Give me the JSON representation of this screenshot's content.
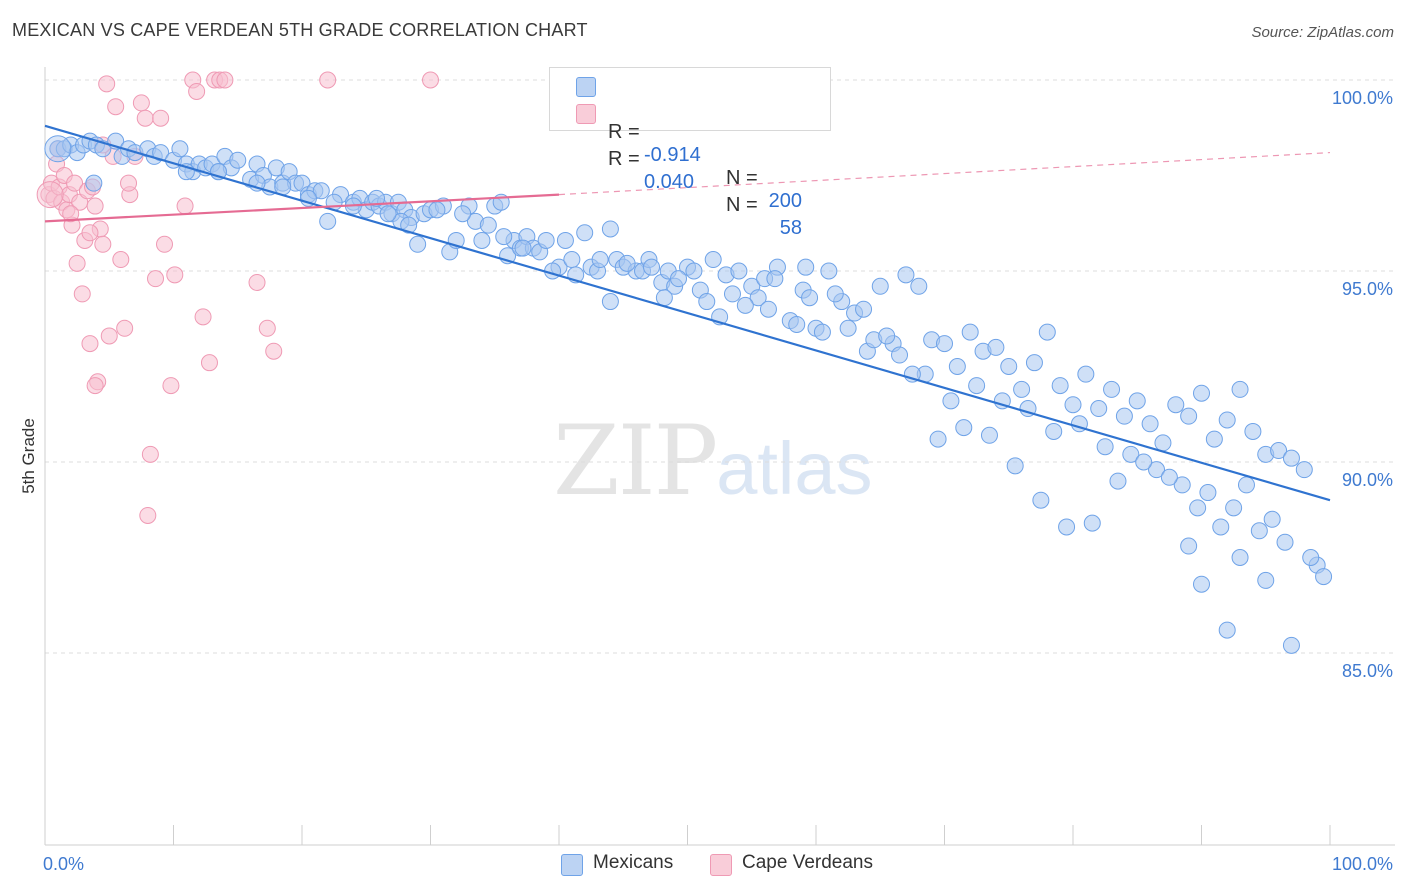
{
  "header": {
    "title": "MEXICAN VS CAPE VERDEAN 5TH GRADE CORRELATION CHART",
    "source": "Source: ZipAtlas.com"
  },
  "watermark": {
    "zip": "ZIP",
    "atlas": "atlas"
  },
  "legend": {
    "rows": [
      {
        "r_label": "R =",
        "r_value": "-0.914",
        "n_label": "N =",
        "n_value": "200",
        "color": "#6fa3e8"
      },
      {
        "r_label": "R =",
        "r_value": "0.040",
        "n_label": "N =",
        "n_value": "58",
        "color": "#f0a0b8"
      }
    ]
  },
  "bottom_legend": {
    "items": [
      {
        "label": "Mexicans",
        "color": "#6fa3e8"
      },
      {
        "label": "Cape Verdeans",
        "color": "#f0a0b8"
      }
    ]
  },
  "colors": {
    "mexicans_fill": "#a8c6f0",
    "mexicans_stroke": "#6fa3e8",
    "mexicans_line": "#2f73d0",
    "capeverdeans_fill": "#f7c0d0",
    "capeverdeans_stroke": "#ef9ab4",
    "capeverdeans_line": "#e56b93",
    "tick_text": "#3f7ad0",
    "grid": "#dcdcdc"
  },
  "chart_data": {
    "type": "scatter",
    "title": "MEXICAN VS CAPE VERDEAN 5TH GRADE CORRELATION CHART",
    "xlabel": "",
    "ylabel": "5th Grade",
    "xlim": [
      0,
      100
    ],
    "ylim": [
      80.0,
      100.5
    ],
    "x_tick_labels": [
      "0.0%",
      "100.0%"
    ],
    "y_ticks": [
      85.0,
      90.0,
      95.0,
      100.0
    ],
    "y_tick_labels": [
      "85.0%",
      "90.0%",
      "95.0%",
      "100.0%"
    ],
    "grid": true,
    "legend_position": "top-center",
    "series": [
      {
        "name": "Mexicans",
        "R": -0.914,
        "N": 200,
        "trend": {
          "x": [
            0,
            100
          ],
          "y": [
            98.8,
            89.0
          ]
        },
        "points": [
          [
            1.0,
            98.2
          ],
          [
            1.5,
            98.2
          ],
          [
            2.0,
            98.3
          ],
          [
            2.5,
            98.1
          ],
          [
            3.0,
            98.3
          ],
          [
            3.5,
            98.4
          ],
          [
            4.0,
            98.3
          ],
          [
            4.5,
            98.2
          ],
          [
            5.5,
            98.4
          ],
          [
            6.0,
            98.0
          ],
          [
            6.5,
            98.2
          ],
          [
            7.0,
            98.1
          ],
          [
            3.8,
            97.3
          ],
          [
            8.0,
            98.2
          ],
          [
            8.5,
            98.0
          ],
          [
            9.0,
            98.1
          ],
          [
            10.0,
            97.9
          ],
          [
            10.5,
            98.2
          ],
          [
            11.0,
            97.8
          ],
          [
            11.5,
            97.6
          ],
          [
            12.0,
            97.8
          ],
          [
            12.5,
            97.7
          ],
          [
            13.0,
            97.8
          ],
          [
            13.5,
            97.6
          ],
          [
            14.0,
            98.0
          ],
          [
            14.5,
            97.7
          ],
          [
            15.0,
            97.9
          ],
          [
            16.0,
            97.4
          ],
          [
            16.5,
            97.8
          ],
          [
            17.0,
            97.5
          ],
          [
            17.5,
            97.2
          ],
          [
            18.0,
            97.7
          ],
          [
            18.5,
            97.3
          ],
          [
            19.0,
            97.6
          ],
          [
            19.5,
            97.3
          ],
          [
            20.0,
            97.3
          ],
          [
            20.5,
            97.0
          ],
          [
            21.0,
            97.1
          ],
          [
            21.5,
            97.1
          ],
          [
            22.0,
            96.3
          ],
          [
            23.0,
            97.0
          ],
          [
            24.0,
            96.8
          ],
          [
            24.5,
            96.9
          ],
          [
            25.0,
            96.6
          ],
          [
            25.5,
            96.8
          ],
          [
            26.0,
            96.7
          ],
          [
            26.5,
            96.8
          ],
          [
            27.0,
            96.5
          ],
          [
            27.5,
            96.8
          ],
          [
            28.0,
            96.6
          ],
          [
            28.5,
            96.4
          ],
          [
            29.0,
            95.7
          ],
          [
            29.5,
            96.5
          ],
          [
            30.0,
            96.6
          ],
          [
            31.0,
            96.7
          ],
          [
            31.5,
            95.5
          ],
          [
            32.0,
            95.8
          ],
          [
            33.0,
            96.7
          ],
          [
            33.5,
            96.3
          ],
          [
            34.0,
            95.8
          ],
          [
            35.0,
            96.7
          ],
          [
            35.5,
            96.8
          ],
          [
            36.0,
            95.4
          ],
          [
            36.5,
            95.8
          ],
          [
            37.0,
            95.6
          ],
          [
            37.5,
            95.9
          ],
          [
            38.0,
            95.6
          ],
          [
            38.5,
            95.5
          ],
          [
            39.0,
            95.8
          ],
          [
            40.0,
            95.1
          ],
          [
            40.5,
            95.8
          ],
          [
            41.0,
            95.3
          ],
          [
            42.0,
            96.0
          ],
          [
            42.5,
            95.1
          ],
          [
            43.0,
            95.0
          ],
          [
            44.0,
            96.1
          ],
          [
            44.5,
            95.3
          ],
          [
            45.0,
            95.1
          ],
          [
            46.0,
            95.0
          ],
          [
            46.5,
            95.0
          ],
          [
            47.0,
            95.3
          ],
          [
            48.0,
            94.7
          ],
          [
            48.5,
            95.0
          ],
          [
            49.0,
            94.6
          ],
          [
            50.0,
            95.1
          ],
          [
            50.5,
            95.0
          ],
          [
            51.0,
            94.5
          ],
          [
            52.0,
            95.3
          ],
          [
            53.0,
            94.9
          ],
          [
            53.5,
            94.4
          ],
          [
            54.0,
            95.0
          ],
          [
            55.0,
            94.6
          ],
          [
            55.5,
            94.3
          ],
          [
            56.0,
            94.8
          ],
          [
            57.0,
            95.1
          ],
          [
            58.0,
            93.7
          ],
          [
            59.0,
            94.5
          ],
          [
            59.5,
            94.3
          ],
          [
            60.0,
            93.5
          ],
          [
            61.0,
            95.0
          ],
          [
            62.0,
            94.2
          ],
          [
            63.0,
            93.9
          ],
          [
            64.0,
            92.9
          ],
          [
            65.0,
            94.6
          ],
          [
            66.0,
            93.1
          ],
          [
            67.0,
            94.9
          ],
          [
            68.0,
            94.6
          ],
          [
            69.0,
            93.2
          ],
          [
            70.0,
            93.1
          ],
          [
            71.0,
            92.5
          ],
          [
            72.0,
            93.4
          ],
          [
            73.0,
            92.9
          ],
          [
            74.0,
            93.0
          ],
          [
            75.0,
            92.5
          ],
          [
            76.0,
            91.9
          ],
          [
            77.0,
            92.6
          ],
          [
            78.0,
            93.4
          ],
          [
            79.0,
            92.0
          ],
          [
            80.0,
            91.5
          ],
          [
            81.0,
            92.3
          ],
          [
            82.0,
            91.4
          ],
          [
            83.0,
            91.9
          ],
          [
            84.0,
            91.2
          ],
          [
            85.0,
            91.6
          ],
          [
            86.0,
            91.0
          ],
          [
            87.0,
            90.5
          ],
          [
            88.0,
            91.5
          ],
          [
            89.0,
            91.2
          ],
          [
            90.0,
            91.8
          ],
          [
            91.0,
            90.6
          ],
          [
            92.0,
            91.1
          ],
          [
            93.0,
            91.9
          ],
          [
            94.0,
            90.8
          ],
          [
            95.0,
            90.2
          ],
          [
            96.0,
            90.3
          ],
          [
            97.0,
            90.1
          ],
          [
            98.0,
            89.8
          ],
          [
            99.0,
            87.3
          ],
          [
            99.5,
            87.0
          ],
          [
            11.0,
            97.6
          ],
          [
            13.5,
            97.6
          ],
          [
            16.5,
            97.3
          ],
          [
            18.5,
            97.2
          ],
          [
            20.5,
            96.9
          ],
          [
            22.5,
            96.8
          ],
          [
            24.0,
            96.7
          ],
          [
            25.8,
            96.9
          ],
          [
            27.7,
            96.3
          ],
          [
            30.5,
            96.6
          ],
          [
            32.5,
            96.5
          ],
          [
            34.5,
            96.2
          ],
          [
            35.7,
            95.9
          ],
          [
            37.2,
            95.6
          ],
          [
            39.5,
            95.0
          ],
          [
            41.3,
            94.9
          ],
          [
            43.2,
            95.3
          ],
          [
            45.3,
            95.2
          ],
          [
            47.2,
            95.1
          ],
          [
            49.3,
            94.8
          ],
          [
            51.5,
            94.2
          ],
          [
            52.5,
            93.8
          ],
          [
            54.5,
            94.1
          ],
          [
            56.3,
            94.0
          ],
          [
            58.5,
            93.6
          ],
          [
            60.5,
            93.4
          ],
          [
            62.5,
            93.5
          ],
          [
            64.5,
            93.2
          ],
          [
            66.5,
            92.8
          ],
          [
            68.5,
            92.3
          ],
          [
            70.5,
            91.6
          ],
          [
            72.5,
            92.0
          ],
          [
            74.5,
            91.6
          ],
          [
            76.5,
            91.4
          ],
          [
            78.5,
            90.8
          ],
          [
            80.5,
            91.0
          ],
          [
            82.5,
            90.4
          ],
          [
            84.5,
            90.2
          ],
          [
            86.5,
            89.8
          ],
          [
            88.5,
            89.4
          ],
          [
            90.5,
            89.2
          ],
          [
            92.5,
            88.8
          ],
          [
            94.5,
            88.2
          ],
          [
            96.5,
            87.9
          ],
          [
            98.5,
            87.5
          ],
          [
            79.5,
            88.3
          ],
          [
            81.5,
            88.4
          ],
          [
            89.0,
            87.8
          ],
          [
            90.0,
            86.8
          ],
          [
            92.0,
            85.6
          ],
          [
            97.0,
            85.2
          ],
          [
            85.5,
            90.0
          ],
          [
            87.5,
            89.6
          ],
          [
            93.5,
            89.4
          ],
          [
            95.5,
            88.5
          ],
          [
            26.7,
            96.5
          ],
          [
            28.3,
            96.2
          ],
          [
            44.0,
            94.2
          ],
          [
            48.2,
            94.3
          ],
          [
            56.8,
            94.8
          ],
          [
            59.2,
            95.1
          ],
          [
            61.5,
            94.4
          ],
          [
            63.7,
            94.0
          ],
          [
            65.5,
            93.3
          ],
          [
            67.5,
            92.3
          ],
          [
            69.5,
            90.6
          ],
          [
            71.5,
            90.9
          ],
          [
            73.5,
            90.7
          ],
          [
            75.5,
            89.9
          ],
          [
            77.5,
            89.0
          ],
          [
            83.5,
            89.5
          ],
          [
            89.7,
            88.8
          ],
          [
            91.5,
            88.3
          ],
          [
            93.0,
            87.5
          ],
          [
            95.0,
            86.9
          ]
        ]
      },
      {
        "name": "Cape Verdeans",
        "R": 0.04,
        "N": 58,
        "trend": {
          "x": [
            0,
            40
          ],
          "y": [
            96.3,
            97.0
          ]
        },
        "trend_extended": {
          "x": [
            40,
            100
          ],
          "y": [
            97.0,
            98.1
          ]
        },
        "points": [
          [
            0.3,
            97.0
          ],
          [
            0.5,
            97.3
          ],
          [
            0.7,
            96.9
          ],
          [
            0.9,
            97.8
          ],
          [
            1.1,
            97.2
          ],
          [
            1.3,
            96.8
          ],
          [
            1.5,
            97.5
          ],
          [
            1.7,
            96.6
          ],
          [
            1.9,
            97.0
          ],
          [
            2.1,
            96.2
          ],
          [
            2.3,
            97.3
          ],
          [
            2.5,
            95.2
          ],
          [
            2.7,
            96.8
          ],
          [
            2.9,
            94.4
          ],
          [
            3.1,
            95.8
          ],
          [
            3.3,
            97.1
          ],
          [
            3.5,
            93.1
          ],
          [
            3.7,
            97.2
          ],
          [
            3.9,
            96.7
          ],
          [
            4.1,
            92.1
          ],
          [
            4.3,
            96.1
          ],
          [
            4.5,
            95.7
          ],
          [
            4.8,
            99.9
          ],
          [
            5.0,
            93.3
          ],
          [
            5.3,
            98.0
          ],
          [
            5.5,
            99.3
          ],
          [
            5.9,
            95.3
          ],
          [
            6.2,
            93.5
          ],
          [
            6.6,
            97.0
          ],
          [
            7.0,
            98.0
          ],
          [
            7.5,
            99.4
          ],
          [
            7.8,
            99.0
          ],
          [
            8.2,
            90.2
          ],
          [
            8.6,
            94.8
          ],
          [
            9.0,
            99.0
          ],
          [
            9.3,
            95.7
          ],
          [
            9.8,
            92.0
          ],
          [
            10.1,
            94.9
          ],
          [
            10.9,
            96.7
          ],
          [
            11.5,
            100.0
          ],
          [
            11.8,
            99.7
          ],
          [
            12.3,
            93.8
          ],
          [
            12.8,
            92.6
          ],
          [
            13.2,
            100.0
          ],
          [
            13.6,
            100.0
          ],
          [
            14.0,
            100.0
          ],
          [
            16.5,
            94.7
          ],
          [
            17.3,
            93.5
          ],
          [
            17.8,
            92.9
          ],
          [
            22.0,
            100.0
          ],
          [
            30.0,
            100.0
          ],
          [
            8.0,
            88.6
          ],
          [
            3.9,
            92.0
          ],
          [
            4.5,
            98.3
          ],
          [
            6.5,
            97.3
          ],
          [
            1.0,
            98.2
          ],
          [
            2.0,
            96.5
          ],
          [
            3.5,
            96.0
          ]
        ]
      }
    ]
  }
}
